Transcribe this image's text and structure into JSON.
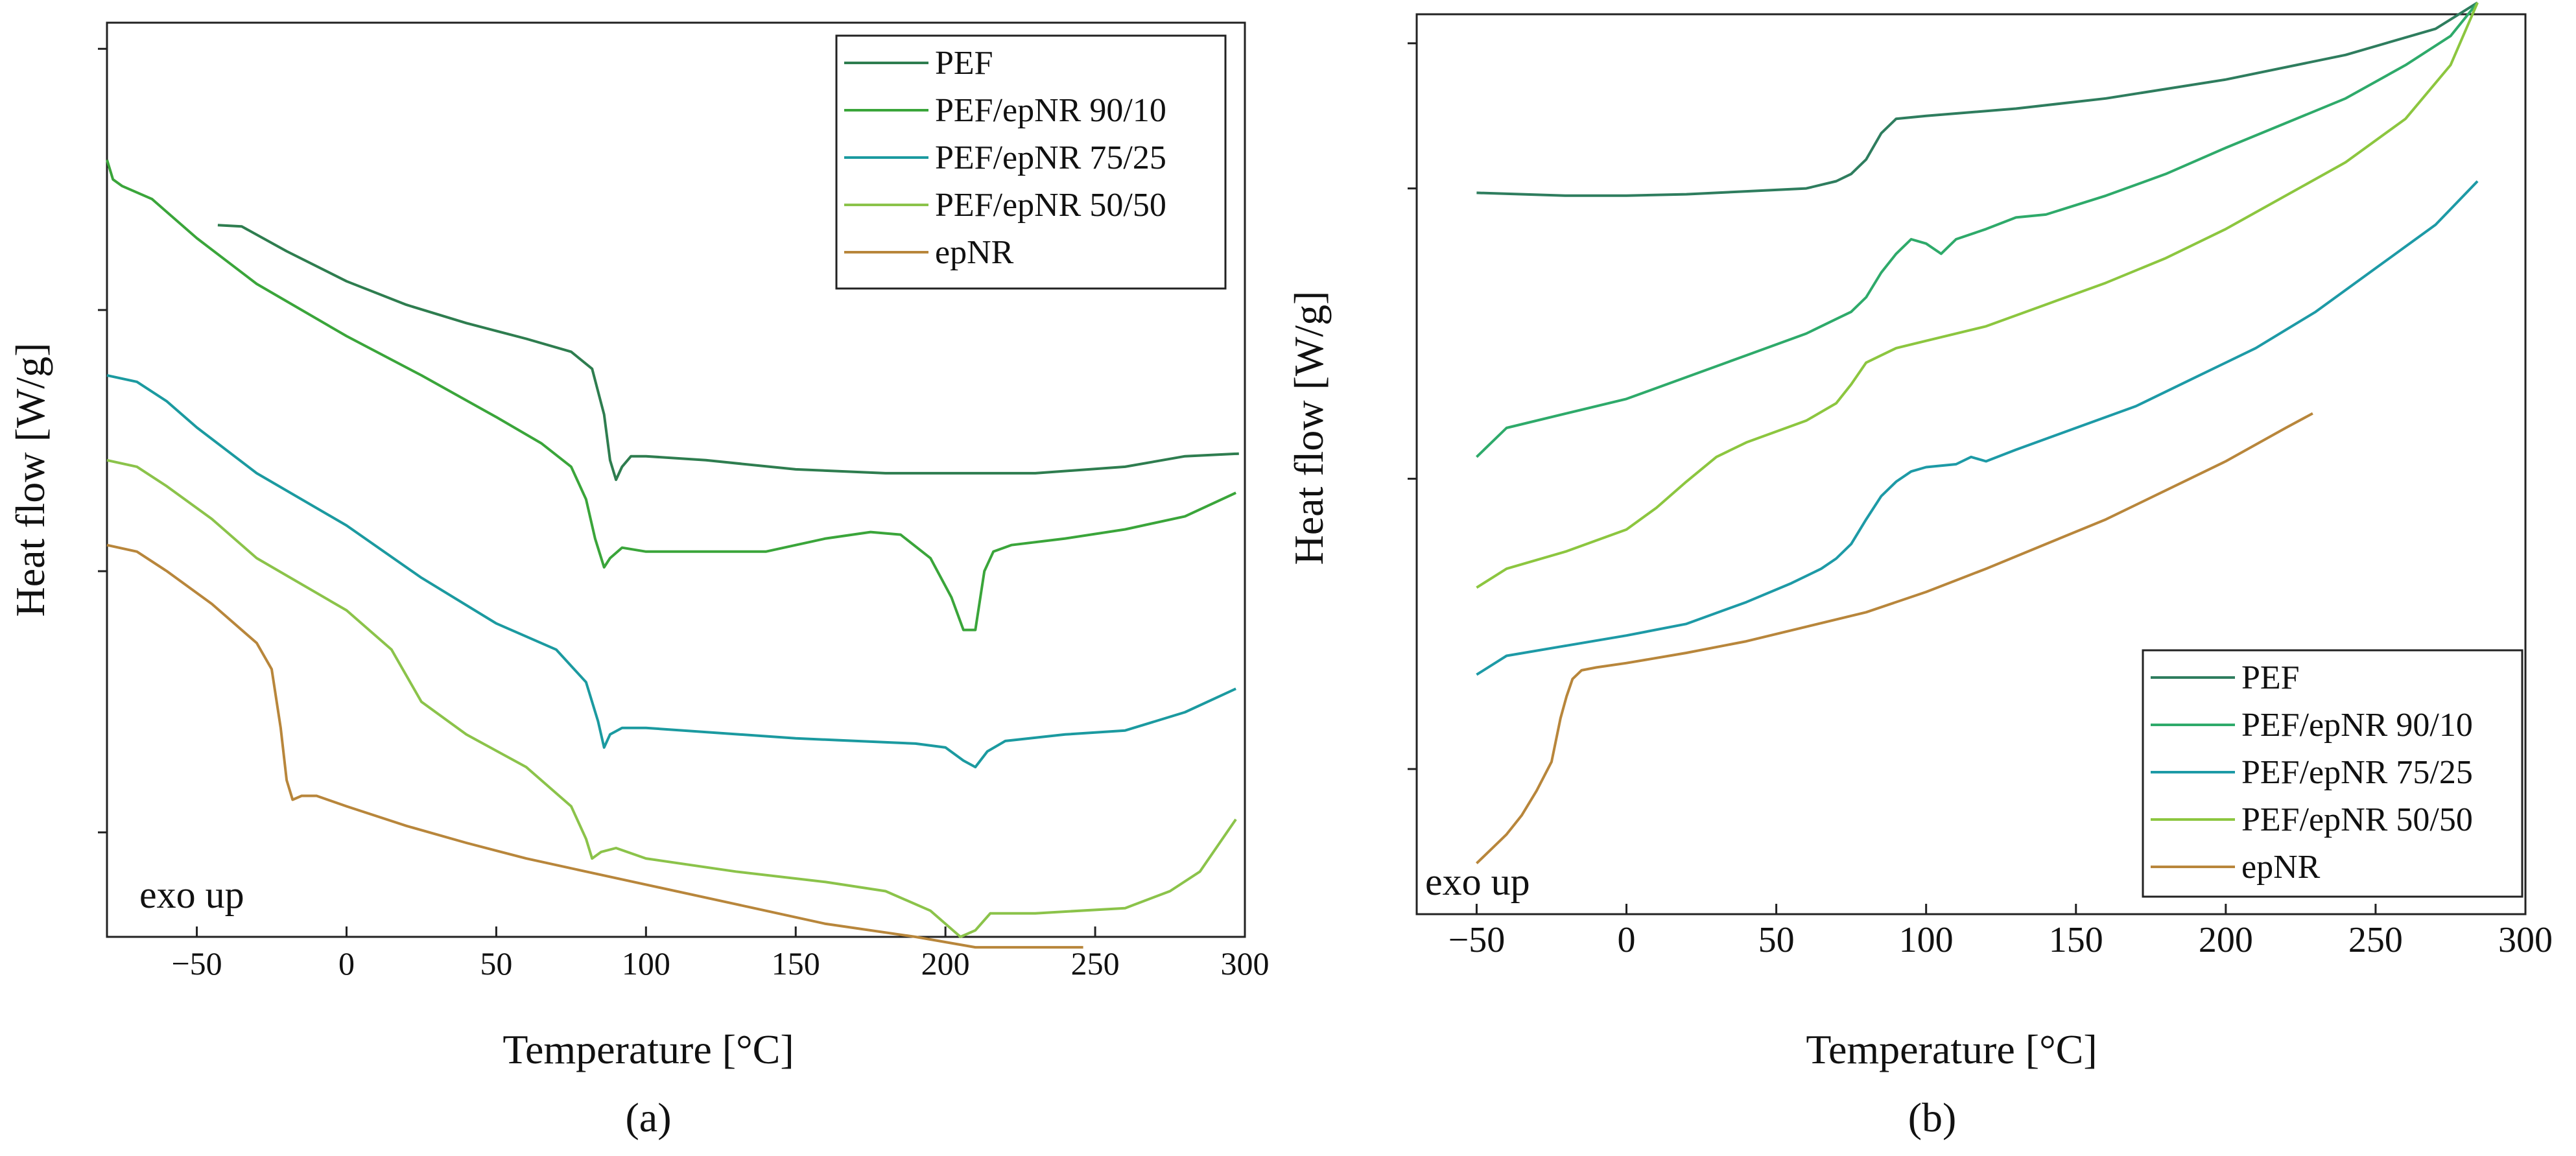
{
  "chart_data": [
    {
      "id": "a",
      "type": "line",
      "panel_label": "(a)",
      "xlabel": "Temperature [°C]",
      "ylabel": "Heat flow [W/g]",
      "annotation": "exo up",
      "xlim": [
        -80,
        300
      ],
      "ylim": [
        -6.8,
        0.2
      ],
      "x_ticks": [
        -50,
        0,
        50,
        100,
        150,
        200,
        250,
        300
      ],
      "x_tick_labels": [
        "−50",
        "0",
        "50",
        "100",
        "150",
        "200",
        "250",
        "300"
      ],
      "y_ticks": [
        -6.0,
        -4.0,
        -2.0,
        0.0
      ],
      "grid": false,
      "legend_position": "top-right",
      "series": [
        {
          "name": "PEF",
          "color": "#2e7d4f",
          "x": [
            -43,
            -35,
            -20,
            0,
            20,
            40,
            60,
            75,
            82,
            86,
            88,
            90,
            92,
            95,
            100,
            120,
            150,
            180,
            200,
            230,
            260,
            280,
            298
          ],
          "y": [
            -1.35,
            -1.36,
            -1.55,
            -1.78,
            -1.96,
            -2.1,
            -2.22,
            -2.32,
            -2.45,
            -2.8,
            -3.15,
            -3.3,
            -3.2,
            -3.12,
            -3.12,
            -3.15,
            -3.22,
            -3.25,
            -3.25,
            -3.25,
            -3.2,
            -3.12,
            -3.1
          ]
        },
        {
          "name": "PEF/epNR 90/10",
          "color": "#3aa53a",
          "x": [
            -80,
            -78,
            -75,
            -65,
            -50,
            -30,
            0,
            25,
            50,
            65,
            75,
            80,
            83,
            86,
            88,
            92,
            100,
            120,
            140,
            160,
            175,
            185,
            195,
            202,
            206,
            210,
            213,
            216,
            222,
            240,
            260,
            280,
            297
          ],
          "y": [
            -0.85,
            -1.0,
            -1.05,
            -1.15,
            -1.45,
            -1.8,
            -2.2,
            -2.5,
            -2.82,
            -3.02,
            -3.2,
            -3.45,
            -3.75,
            -3.97,
            -3.9,
            -3.82,
            -3.85,
            -3.85,
            -3.85,
            -3.75,
            -3.7,
            -3.72,
            -3.9,
            -4.2,
            -4.45,
            -4.45,
            -4.0,
            -3.85,
            -3.8,
            -3.75,
            -3.68,
            -3.58,
            -3.4
          ]
        },
        {
          "name": "PEF/epNR 75/25",
          "color": "#1b9aa0",
          "x": [
            -80,
            -70,
            -60,
            -50,
            -30,
            0,
            25,
            50,
            70,
            80,
            84,
            86,
            88,
            92,
            100,
            150,
            190,
            200,
            206,
            210,
            214,
            220,
            240,
            260,
            280,
            297
          ],
          "y": [
            -2.5,
            -2.55,
            -2.7,
            -2.9,
            -3.25,
            -3.65,
            -4.05,
            -4.4,
            -4.6,
            -4.85,
            -5.15,
            -5.35,
            -5.25,
            -5.2,
            -5.2,
            -5.28,
            -5.32,
            -5.35,
            -5.45,
            -5.5,
            -5.38,
            -5.3,
            -5.25,
            -5.22,
            -5.08,
            -4.9
          ]
        },
        {
          "name": "PEF/epNR 50/50",
          "color": "#8bc34a",
          "x": [
            -80,
            -70,
            -60,
            -45,
            -30,
            0,
            15,
            25,
            40,
            60,
            75,
            80,
            82,
            85,
            90,
            100,
            130,
            160,
            180,
            195,
            205,
            210,
            215,
            230,
            260,
            275,
            285,
            297
          ],
          "y": [
            -3.15,
            -3.2,
            -3.35,
            -3.6,
            -3.9,
            -4.3,
            -4.6,
            -5.0,
            -5.25,
            -5.5,
            -5.8,
            -6.05,
            -6.2,
            -6.15,
            -6.12,
            -6.2,
            -6.3,
            -6.38,
            -6.45,
            -6.6,
            -6.8,
            -6.75,
            -6.62,
            -6.62,
            -6.58,
            -6.45,
            -6.3,
            -5.9
          ]
        },
        {
          "name": "epNR",
          "color": "#b8863b",
          "x": [
            -80,
            -70,
            -60,
            -45,
            -30,
            -25,
            -22,
            -20,
            -18,
            -15,
            -10,
            0,
            20,
            40,
            60,
            80,
            100,
            130,
            160,
            190,
            210,
            230,
            246
          ],
          "y": [
            -3.8,
            -3.85,
            -4.0,
            -4.25,
            -4.55,
            -4.75,
            -5.2,
            -5.6,
            -5.75,
            -5.72,
            -5.72,
            -5.8,
            -5.95,
            -6.08,
            -6.2,
            -6.3,
            -6.4,
            -6.55,
            -6.7,
            -6.8,
            -6.88,
            -6.88,
            -6.88
          ]
        }
      ]
    },
    {
      "id": "b",
      "type": "line",
      "panel_label": "(b)",
      "xlabel": "Temperature [°C]",
      "ylabel": "Heat flow [W/g]",
      "annotation": "exo up",
      "xlim": [
        -70,
        300
      ],
      "ylim": [
        -5.0,
        1.2
      ],
      "x_ticks": [
        -50,
        0,
        50,
        100,
        150,
        200,
        250,
        300
      ],
      "x_tick_labels": [
        "−50",
        "0",
        "50",
        "100",
        "150",
        "200",
        "250",
        "300"
      ],
      "y_ticks": [
        -4.0,
        -2.0,
        0.0,
        1.0
      ],
      "grid": false,
      "legend_position": "bottom-right",
      "series": [
        {
          "name": "PEF",
          "color": "#2e7d5e",
          "x": [
            -50,
            -20,
            0,
            20,
            40,
            60,
            70,
            75,
            80,
            85,
            90,
            100,
            130,
            160,
            200,
            240,
            270,
            284
          ],
          "y": [
            -0.03,
            -0.05,
            -0.05,
            -0.04,
            -0.02,
            0.0,
            0.05,
            0.1,
            0.2,
            0.38,
            0.48,
            0.5,
            0.55,
            0.62,
            0.75,
            0.92,
            1.1,
            1.28
          ]
        },
        {
          "name": "PEF/epNR 90/10",
          "color": "#2eaa6a",
          "x": [
            -50,
            -40,
            -20,
            0,
            20,
            40,
            60,
            70,
            75,
            80,
            85,
            90,
            95,
            100,
            105,
            110,
            120,
            130,
            140,
            160,
            180,
            200,
            220,
            240,
            260,
            275,
            284
          ],
          "y": [
            -1.85,
            -1.65,
            -1.55,
            -1.45,
            -1.3,
            -1.15,
            -1.0,
            -0.9,
            -0.85,
            -0.75,
            -0.58,
            -0.45,
            -0.35,
            -0.38,
            -0.45,
            -0.35,
            -0.28,
            -0.2,
            -0.18,
            -0.05,
            0.1,
            0.28,
            0.45,
            0.62,
            0.85,
            1.05,
            1.28
          ]
        },
        {
          "name": "PEF/epNR 75/25",
          "color": "#1d9aa6",
          "x": [
            -50,
            -40,
            -20,
            0,
            20,
            40,
            55,
            65,
            70,
            75,
            80,
            85,
            90,
            95,
            100,
            110,
            115,
            120,
            130,
            150,
            170,
            190,
            210,
            230,
            250,
            270,
            284
          ],
          "y": [
            -3.35,
            -3.22,
            -3.15,
            -3.08,
            -3.0,
            -2.85,
            -2.72,
            -2.62,
            -2.55,
            -2.45,
            -2.28,
            -2.12,
            -2.02,
            -1.95,
            -1.92,
            -1.9,
            -1.85,
            -1.88,
            -1.8,
            -1.65,
            -1.5,
            -1.3,
            -1.1,
            -0.85,
            -0.55,
            -0.25,
            0.05
          ]
        },
        {
          "name": "PEF/epNR 50/50",
          "color": "#8cc63f",
          "x": [
            -50,
            -40,
            -20,
            0,
            10,
            20,
            30,
            40,
            60,
            70,
            75,
            80,
            85,
            90,
            100,
            120,
            140,
            160,
            180,
            200,
            220,
            240,
            260,
            275,
            284
          ],
          "y": [
            -2.75,
            -2.62,
            -2.5,
            -2.35,
            -2.2,
            -2.02,
            -1.85,
            -1.75,
            -1.6,
            -1.48,
            -1.35,
            -1.2,
            -1.15,
            -1.1,
            -1.05,
            -0.95,
            -0.8,
            -0.65,
            -0.48,
            -0.28,
            -0.05,
            0.18,
            0.48,
            0.85,
            1.28
          ]
        },
        {
          "name": "epNR",
          "color": "#b8863b",
          "x": [
            -50,
            -45,
            -40,
            -35,
            -30,
            -25,
            -22,
            -20,
            -18,
            -15,
            -10,
            0,
            20,
            40,
            60,
            80,
            100,
            120,
            140,
            160,
            180,
            200,
            220,
            229
          ],
          "y": [
            -4.65,
            -4.55,
            -4.45,
            -4.32,
            -4.15,
            -3.95,
            -3.65,
            -3.5,
            -3.38,
            -3.32,
            -3.3,
            -3.27,
            -3.2,
            -3.12,
            -3.02,
            -2.92,
            -2.78,
            -2.62,
            -2.45,
            -2.28,
            -2.08,
            -1.88,
            -1.65,
            -1.55
          ]
        }
      ]
    }
  ]
}
